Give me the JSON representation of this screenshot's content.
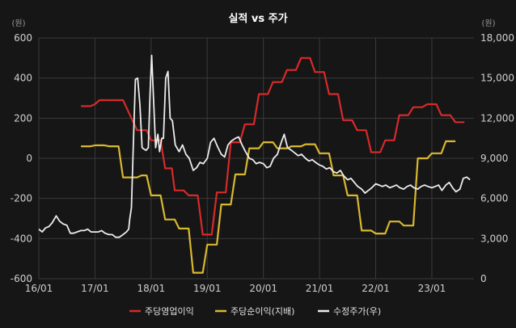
{
  "chart_data": {
    "type": "line",
    "title": "실적 vs 주가",
    "left_unit": "(원)",
    "right_unit": "(원)",
    "x_ticks": [
      "16/01",
      "17/01",
      "18/01",
      "19/01",
      "20/01",
      "21/01",
      "22/01",
      "23/01"
    ],
    "x_range": [
      2016.0,
      2023.75
    ],
    "y_left": {
      "min": -600,
      "max": 600,
      "ticks": [
        600,
        400,
        200,
        0,
        -200,
        -400,
        -600
      ],
      "tick_labels": [
        "600",
        "400",
        "200",
        "0",
        "-200",
        "-400",
        "-600"
      ]
    },
    "y_right": {
      "min": 0,
      "max": 18000,
      "ticks": [
        18000,
        15000,
        12000,
        9000,
        6000,
        3000,
        0
      ],
      "tick_labels": [
        "18,000",
        "15,000",
        "12,000",
        "9,000",
        "6,000",
        "3,000",
        "0"
      ]
    },
    "grid": true,
    "legend_position": "bottom",
    "colors": {
      "background": "#161616",
      "grid": "#3a3a3a"
    },
    "series": [
      {
        "name": "주당영업이익",
        "axis": "left",
        "color": "#d62a2a",
        "step": true,
        "points": [
          [
            2016.75,
            260
          ],
          [
            2016.92,
            260
          ],
          [
            2017.0,
            270
          ],
          [
            2017.08,
            290
          ],
          [
            2017.25,
            290
          ],
          [
            2017.5,
            290
          ],
          [
            2017.75,
            140
          ],
          [
            2017.92,
            140
          ],
          [
            2018.0,
            90
          ],
          [
            2018.17,
            90
          ],
          [
            2018.25,
            -50
          ],
          [
            2018.37,
            -50
          ],
          [
            2018.42,
            -160
          ],
          [
            2018.58,
            -160
          ],
          [
            2018.67,
            -185
          ],
          [
            2018.83,
            -185
          ],
          [
            2018.92,
            -380
          ],
          [
            2019.08,
            -380
          ],
          [
            2019.17,
            -170
          ],
          [
            2019.33,
            -170
          ],
          [
            2019.42,
            80
          ],
          [
            2019.58,
            80
          ],
          [
            2019.67,
            170
          ],
          [
            2019.83,
            170
          ],
          [
            2019.92,
            320
          ],
          [
            2020.08,
            320
          ],
          [
            2020.17,
            380
          ],
          [
            2020.33,
            380
          ],
          [
            2020.42,
            440
          ],
          [
            2020.58,
            440
          ],
          [
            2020.67,
            500
          ],
          [
            2020.83,
            500
          ],
          [
            2020.92,
            430
          ],
          [
            2021.08,
            430
          ],
          [
            2021.17,
            320
          ],
          [
            2021.33,
            320
          ],
          [
            2021.42,
            190
          ],
          [
            2021.58,
            190
          ],
          [
            2021.67,
            140
          ],
          [
            2021.83,
            140
          ],
          [
            2021.92,
            30
          ],
          [
            2022.08,
            30
          ],
          [
            2022.17,
            90
          ],
          [
            2022.33,
            90
          ],
          [
            2022.42,
            215
          ],
          [
            2022.58,
            215
          ],
          [
            2022.67,
            255
          ],
          [
            2022.83,
            255
          ],
          [
            2022.92,
            270
          ],
          [
            2023.08,
            270
          ],
          [
            2023.17,
            215
          ],
          [
            2023.33,
            215
          ],
          [
            2023.42,
            180
          ],
          [
            2023.58,
            180
          ]
        ]
      },
      {
        "name": "주당순이익(지배)",
        "axis": "left",
        "color": "#d9b82e",
        "step": true,
        "points": [
          [
            2016.75,
            60
          ],
          [
            2016.92,
            60
          ],
          [
            2017.0,
            65
          ],
          [
            2017.17,
            65
          ],
          [
            2017.25,
            60
          ],
          [
            2017.42,
            60
          ],
          [
            2017.5,
            -95
          ],
          [
            2017.75,
            -95
          ],
          [
            2017.83,
            -85
          ],
          [
            2017.92,
            -85
          ],
          [
            2018.0,
            -185
          ],
          [
            2018.17,
            -185
          ],
          [
            2018.25,
            -305
          ],
          [
            2018.42,
            -305
          ],
          [
            2018.5,
            -350
          ],
          [
            2018.67,
            -350
          ],
          [
            2018.75,
            -570
          ],
          [
            2018.92,
            -570
          ],
          [
            2019.0,
            -430
          ],
          [
            2019.17,
            -430
          ],
          [
            2019.25,
            -230
          ],
          [
            2019.42,
            -230
          ],
          [
            2019.5,
            -80
          ],
          [
            2019.67,
            -80
          ],
          [
            2019.75,
            50
          ],
          [
            2019.92,
            50
          ],
          [
            2020.0,
            80
          ],
          [
            2020.17,
            80
          ],
          [
            2020.25,
            50
          ],
          [
            2020.42,
            50
          ],
          [
            2020.5,
            60
          ],
          [
            2020.67,
            60
          ],
          [
            2020.75,
            70
          ],
          [
            2020.92,
            70
          ],
          [
            2021.0,
            25
          ],
          [
            2021.17,
            25
          ],
          [
            2021.25,
            -85
          ],
          [
            2021.42,
            -85
          ],
          [
            2021.5,
            -185
          ],
          [
            2021.67,
            -185
          ],
          [
            2021.75,
            -360
          ],
          [
            2021.92,
            -360
          ],
          [
            2022.0,
            -375
          ],
          [
            2022.17,
            -375
          ],
          [
            2022.25,
            -315
          ],
          [
            2022.42,
            -315
          ],
          [
            2022.5,
            -335
          ],
          [
            2022.67,
            -335
          ],
          [
            2022.75,
            0
          ],
          [
            2022.92,
            0
          ],
          [
            2023.0,
            25
          ],
          [
            2023.17,
            25
          ],
          [
            2023.25,
            85
          ],
          [
            2023.42,
            85
          ]
        ]
      },
      {
        "name": "수정주가(우)",
        "axis": "right",
        "color": "#ececec",
        "step": false,
        "points": [
          [
            2016.0,
            3700
          ],
          [
            2016.06,
            3500
          ],
          [
            2016.12,
            3800
          ],
          [
            2016.18,
            3900
          ],
          [
            2016.24,
            4200
          ],
          [
            2016.31,
            4700
          ],
          [
            2016.37,
            4300
          ],
          [
            2016.43,
            4100
          ],
          [
            2016.5,
            4000
          ],
          [
            2016.56,
            3400
          ],
          [
            2016.62,
            3400
          ],
          [
            2016.68,
            3500
          ],
          [
            2016.75,
            3600
          ],
          [
            2016.81,
            3600
          ],
          [
            2016.87,
            3700
          ],
          [
            2016.93,
            3500
          ],
          [
            2017.0,
            3500
          ],
          [
            2017.06,
            3500
          ],
          [
            2017.12,
            3600
          ],
          [
            2017.18,
            3400
          ],
          [
            2017.25,
            3300
          ],
          [
            2017.31,
            3300
          ],
          [
            2017.37,
            3100
          ],
          [
            2017.43,
            3100
          ],
          [
            2017.5,
            3300
          ],
          [
            2017.56,
            3500
          ],
          [
            2017.6,
            3700
          ],
          [
            2017.62,
            4500
          ],
          [
            2017.65,
            5300
          ],
          [
            2017.68,
            9500
          ],
          [
            2017.72,
            14900
          ],
          [
            2017.76,
            15000
          ],
          [
            2017.8,
            13000
          ],
          [
            2017.84,
            9800
          ],
          [
            2017.87,
            9700
          ],
          [
            2017.91,
            9600
          ],
          [
            2017.95,
            9800
          ],
          [
            2017.98,
            13800
          ],
          [
            2018.01,
            16700
          ],
          [
            2018.05,
            12800
          ],
          [
            2018.08,
            9800
          ],
          [
            2018.12,
            10800
          ],
          [
            2018.15,
            9500
          ],
          [
            2018.19,
            10500
          ],
          [
            2018.22,
            10500
          ],
          [
            2018.26,
            15000
          ],
          [
            2018.3,
            15500
          ],
          [
            2018.34,
            12000
          ],
          [
            2018.38,
            11800
          ],
          [
            2018.43,
            10000
          ],
          [
            2018.5,
            9500
          ],
          [
            2018.56,
            10000
          ],
          [
            2018.62,
            9300
          ],
          [
            2018.68,
            9000
          ],
          [
            2018.75,
            8100
          ],
          [
            2018.81,
            8300
          ],
          [
            2018.87,
            8700
          ],
          [
            2018.93,
            8600
          ],
          [
            2019.0,
            9000
          ],
          [
            2019.06,
            10200
          ],
          [
            2019.12,
            10500
          ],
          [
            2019.18,
            9900
          ],
          [
            2019.25,
            9300
          ],
          [
            2019.31,
            9100
          ],
          [
            2019.37,
            10000
          ],
          [
            2019.43,
            10300
          ],
          [
            2019.5,
            10500
          ],
          [
            2019.56,
            10600
          ],
          [
            2019.62,
            10000
          ],
          [
            2019.68,
            9500
          ],
          [
            2019.75,
            9000
          ],
          [
            2019.81,
            8900
          ],
          [
            2019.87,
            8600
          ],
          [
            2019.93,
            8700
          ],
          [
            2020.0,
            8600
          ],
          [
            2020.06,
            8300
          ],
          [
            2020.12,
            8400
          ],
          [
            2020.18,
            9000
          ],
          [
            2020.25,
            9300
          ],
          [
            2020.31,
            10100
          ],
          [
            2020.37,
            10800
          ],
          [
            2020.43,
            9800
          ],
          [
            2020.5,
            9600
          ],
          [
            2020.56,
            9400
          ],
          [
            2020.62,
            9200
          ],
          [
            2020.68,
            9300
          ],
          [
            2020.75,
            9000
          ],
          [
            2020.81,
            8800
          ],
          [
            2020.87,
            8900
          ],
          [
            2020.93,
            8700
          ],
          [
            2021.0,
            8500
          ],
          [
            2021.06,
            8400
          ],
          [
            2021.12,
            8200
          ],
          [
            2021.18,
            8300
          ],
          [
            2021.25,
            8000
          ],
          [
            2021.31,
            7900
          ],
          [
            2021.37,
            8100
          ],
          [
            2021.43,
            7700
          ],
          [
            2021.5,
            7400
          ],
          [
            2021.56,
            7500
          ],
          [
            2021.62,
            7200
          ],
          [
            2021.68,
            6900
          ],
          [
            2021.75,
            6700
          ],
          [
            2021.81,
            6400
          ],
          [
            2021.87,
            6600
          ],
          [
            2021.93,
            6800
          ],
          [
            2022.0,
            7100
          ],
          [
            2022.06,
            7000
          ],
          [
            2022.12,
            6900
          ],
          [
            2022.18,
            7000
          ],
          [
            2022.25,
            6800
          ],
          [
            2022.31,
            6900
          ],
          [
            2022.37,
            7000
          ],
          [
            2022.43,
            6800
          ],
          [
            2022.5,
            6700
          ],
          [
            2022.56,
            6900
          ],
          [
            2022.62,
            7000
          ],
          [
            2022.68,
            6800
          ],
          [
            2022.75,
            6700
          ],
          [
            2022.81,
            6900
          ],
          [
            2022.87,
            7000
          ],
          [
            2022.93,
            6900
          ],
          [
            2023.0,
            6800
          ],
          [
            2023.06,
            6900
          ],
          [
            2023.12,
            7000
          ],
          [
            2023.18,
            6600
          ],
          [
            2023.25,
            7000
          ],
          [
            2023.31,
            7200
          ],
          [
            2023.37,
            6800
          ],
          [
            2023.43,
            6500
          ],
          [
            2023.5,
            6700
          ],
          [
            2023.56,
            7500
          ],
          [
            2023.62,
            7600
          ],
          [
            2023.68,
            7400
          ]
        ]
      }
    ]
  }
}
